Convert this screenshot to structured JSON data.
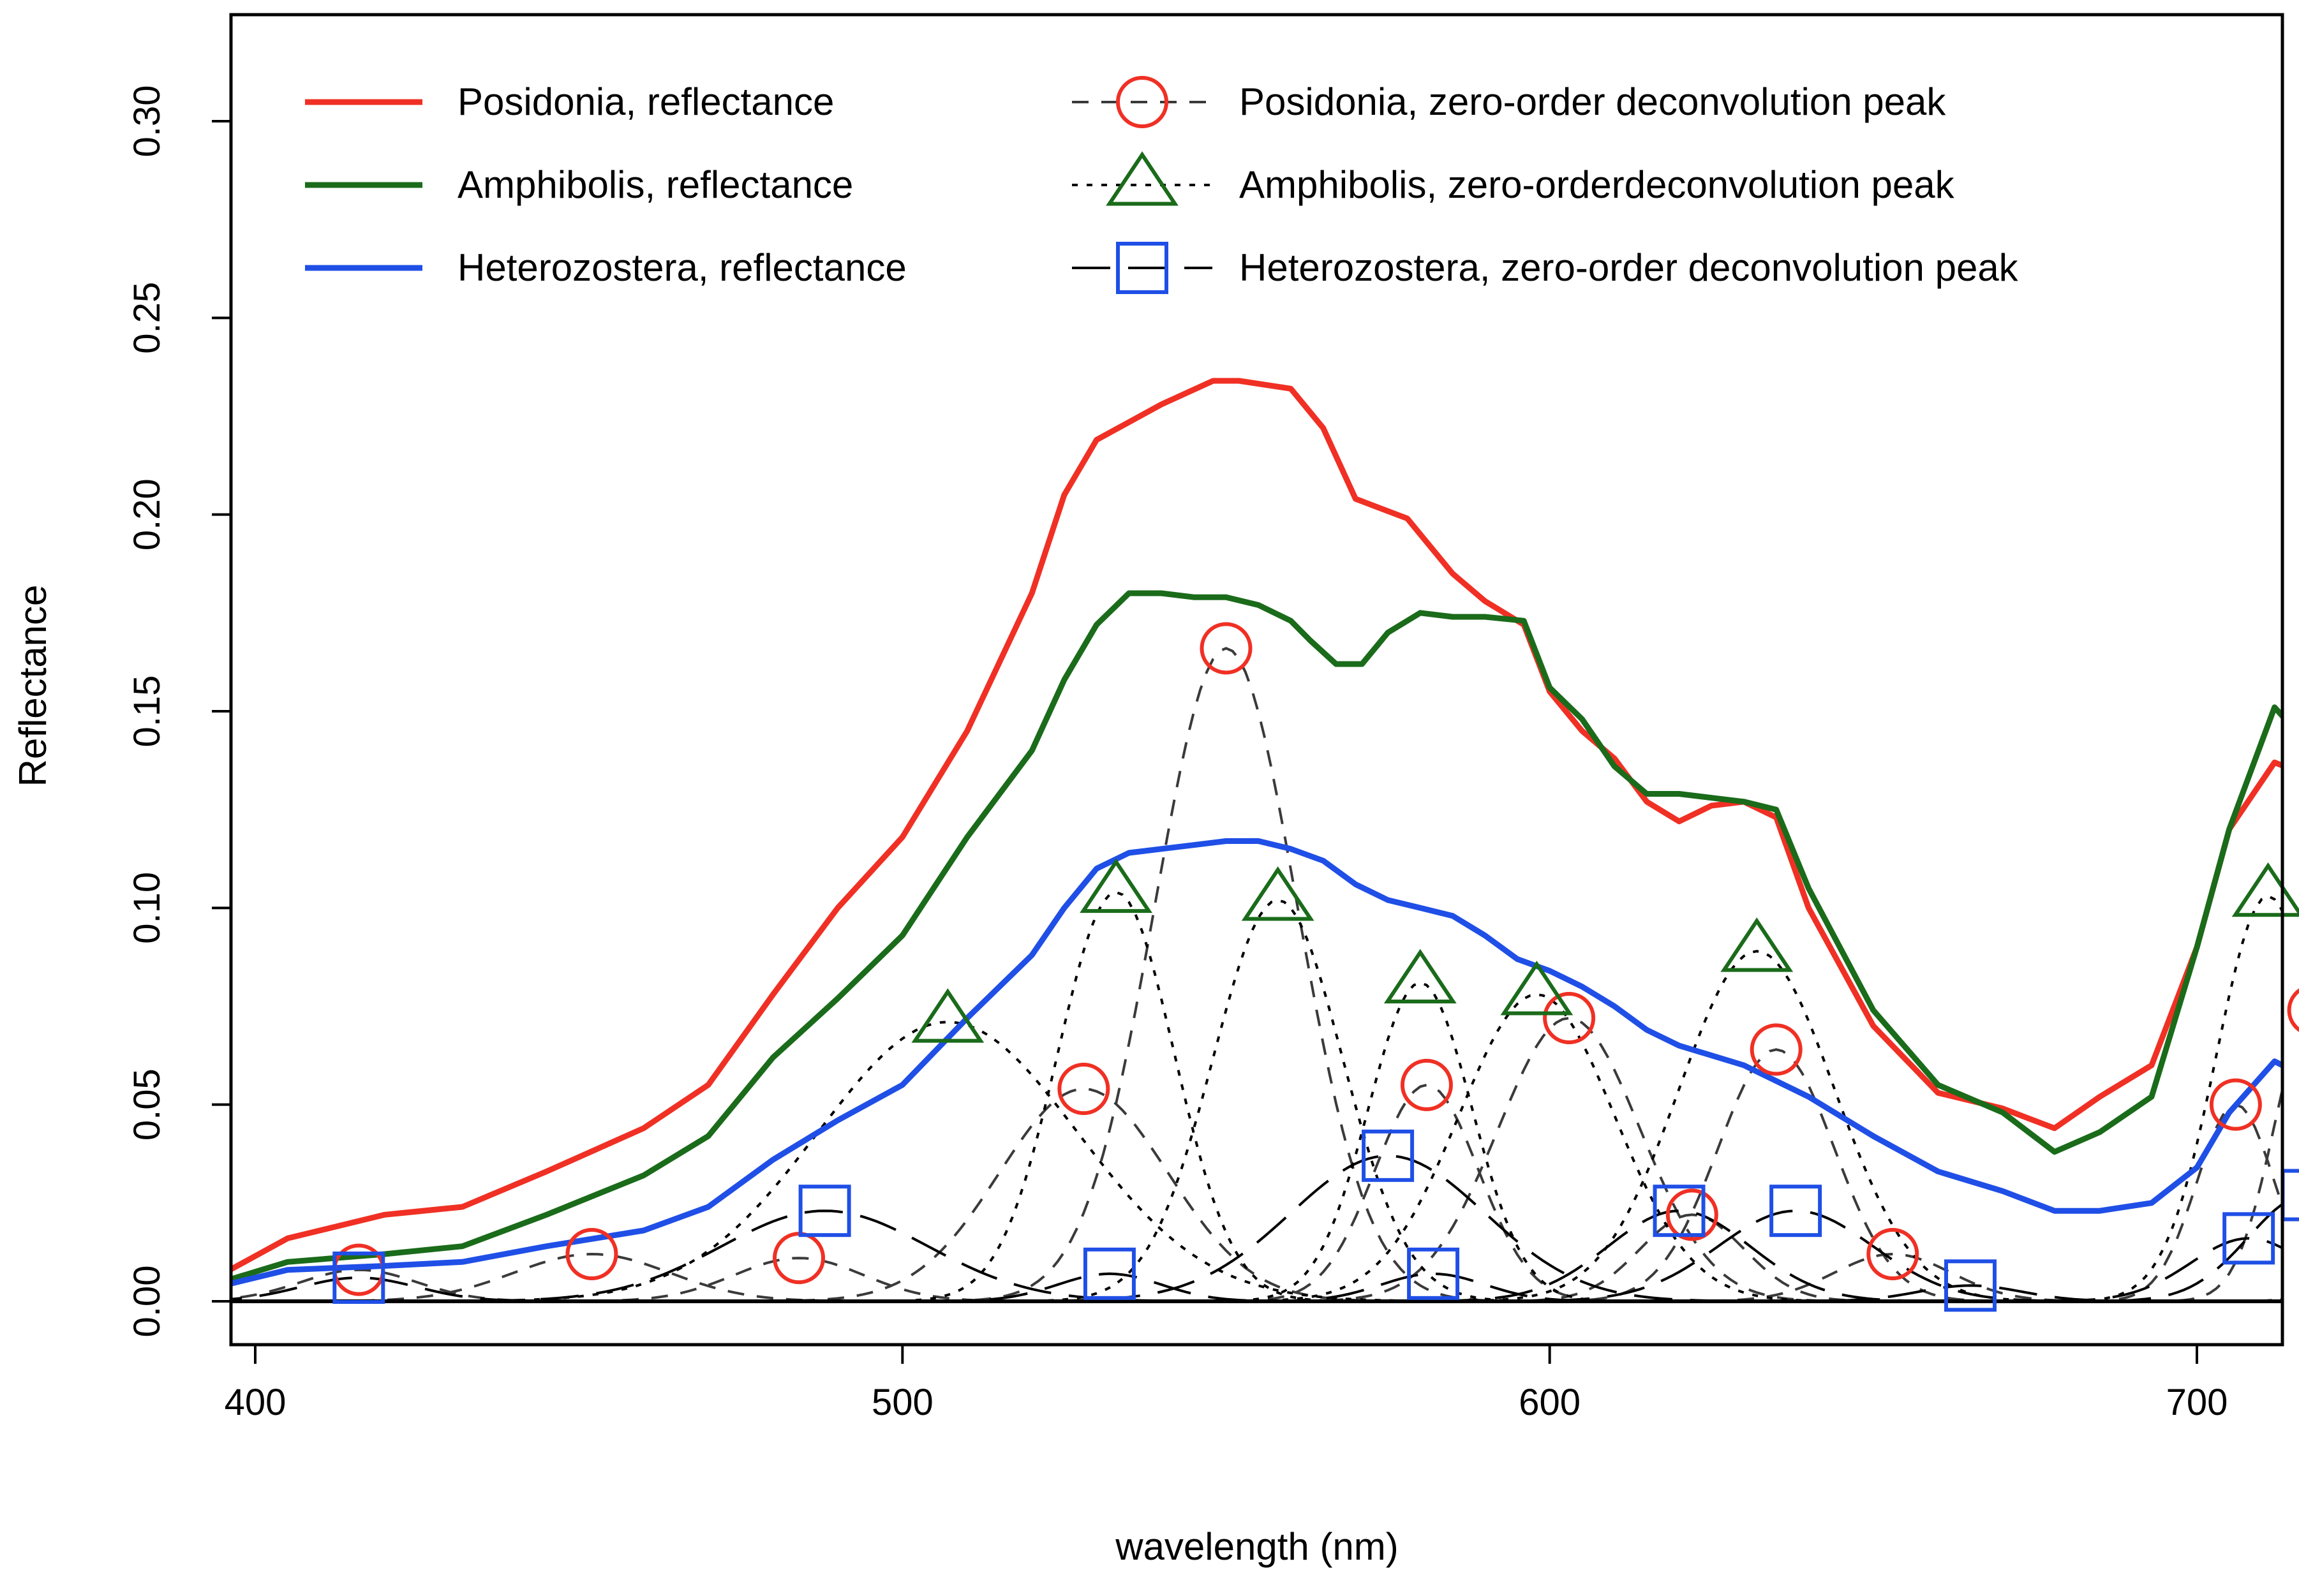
{
  "chart_data": {
    "type": "line",
    "title": "",
    "xlabel": "wavelength (nm)",
    "ylabel": "Reflectance",
    "xlim": [
      365,
      745
    ],
    "ylim": [
      0,
      0.3
    ],
    "x_ticks": [
      400,
      500,
      600,
      700
    ],
    "x_tick_labels": [
      "400",
      "500",
      "600",
      "700"
    ],
    "y_ticks": [
      0,
      0.05,
      0.1,
      0.15,
      0.2,
      0.25,
      0.3
    ],
    "y_tick_labels": [
      "0.00",
      "0.05",
      "0.10",
      "0.15",
      "0.20",
      "0.25",
      "0.30"
    ],
    "grid": false,
    "legend_position": "top",
    "series": [
      {
        "name": "Posidonia, reflectance",
        "color": "#f03024",
        "style": "solid",
        "x": [
          366,
          380,
          395,
          405,
          420,
          432,
          445,
          460,
          470,
          480,
          490,
          500,
          510,
          520,
          525,
          530,
          540,
          548,
          552,
          560,
          565,
          570,
          578,
          585,
          590,
          596,
          600,
          605,
          610,
          615,
          620,
          625,
          630,
          635,
          640,
          650,
          660,
          670,
          678,
          685,
          693,
          700,
          705,
          712,
          718,
          725,
          733
        ],
        "values": [
          0.005,
          0.006,
          0.007,
          0.016,
          0.022,
          0.024,
          0.033,
          0.044,
          0.055,
          0.078,
          0.1,
          0.118,
          0.145,
          0.18,
          0.205,
          0.219,
          0.228,
          0.234,
          0.234,
          0.232,
          0.222,
          0.204,
          0.199,
          0.185,
          0.178,
          0.172,
          0.155,
          0.145,
          0.138,
          0.127,
          0.122,
          0.126,
          0.127,
          0.123,
          0.1,
          0.07,
          0.053,
          0.049,
          0.044,
          0.052,
          0.06,
          0.09,
          0.12,
          0.137,
          0.133,
          0.12,
          0.107
        ]
      },
      {
        "name": "Amphibolis, reflectance",
        "color": "#1a6b1a",
        "style": "solid",
        "x": [
          366,
          380,
          395,
          405,
          420,
          432,
          445,
          460,
          470,
          480,
          490,
          500,
          510,
          520,
          525,
          530,
          535,
          540,
          545,
          550,
          555,
          560,
          563,
          567,
          571,
          575,
          580,
          585,
          590,
          596,
          600,
          605,
          610,
          615,
          620,
          625,
          630,
          635,
          640,
          650,
          660,
          670,
          678,
          685,
          693,
          700,
          705,
          712,
          718,
          725,
          733
        ],
        "values": [
          0.004,
          0.004,
          0.005,
          0.01,
          0.012,
          0.014,
          0.022,
          0.032,
          0.042,
          0.062,
          0.077,
          0.093,
          0.118,
          0.14,
          0.158,
          0.172,
          0.18,
          0.18,
          0.179,
          0.179,
          0.177,
          0.173,
          0.168,
          0.162,
          0.162,
          0.17,
          0.175,
          0.174,
          0.174,
          0.173,
          0.156,
          0.148,
          0.136,
          0.129,
          0.129,
          0.128,
          0.127,
          0.125,
          0.105,
          0.074,
          0.055,
          0.048,
          0.038,
          0.043,
          0.052,
          0.09,
          0.12,
          0.151,
          0.14,
          0.115,
          0.11
        ]
      },
      {
        "name": "Heterozostera, reflectance",
        "color": "#1f4fe6",
        "style": "solid",
        "x": [
          366,
          380,
          395,
          405,
          420,
          432,
          445,
          460,
          470,
          480,
          490,
          500,
          510,
          520,
          525,
          530,
          535,
          540,
          545,
          550,
          555,
          560,
          565,
          570,
          575,
          580,
          585,
          590,
          595,
          600,
          605,
          610,
          615,
          620,
          630,
          640,
          650,
          660,
          670,
          678,
          685,
          693,
          700,
          705,
          712,
          718,
          725,
          733
        ],
        "values": [
          0.003,
          0.003,
          0.004,
          0.008,
          0.009,
          0.01,
          0.014,
          0.018,
          0.024,
          0.036,
          0.046,
          0.055,
          0.072,
          0.088,
          0.1,
          0.11,
          0.114,
          0.115,
          0.116,
          0.117,
          0.117,
          0.115,
          0.112,
          0.106,
          0.102,
          0.1,
          0.098,
          0.093,
          0.087,
          0.084,
          0.08,
          0.075,
          0.069,
          0.065,
          0.06,
          0.052,
          0.042,
          0.033,
          0.028,
          0.023,
          0.023,
          0.025,
          0.034,
          0.048,
          0.061,
          0.056,
          0.045,
          0.04
        ]
      },
      {
        "name": "Posidonia, zero-order deconvolution peak",
        "color": "#f03024",
        "line_color": "#3a3a3a",
        "style": "dashed",
        "marker": "circle",
        "peaks": [
          {
            "center": 416,
            "height": 0.008,
            "sigma": 9
          },
          {
            "center": 452,
            "height": 0.012,
            "sigma": 12
          },
          {
            "center": 484,
            "height": 0.011,
            "sigma": 10
          },
          {
            "center": 528,
            "height": 0.054,
            "sigma": 13
          },
          {
            "center": 550,
            "height": 0.166,
            "sigma": 11
          },
          {
            "center": 581,
            "height": 0.055,
            "sigma": 8
          },
          {
            "center": 603,
            "height": 0.072,
            "sigma": 11
          },
          {
            "center": 622,
            "height": 0.022,
            "sigma": 8
          },
          {
            "center": 635,
            "height": 0.064,
            "sigma": 9
          },
          {
            "center": 653,
            "height": 0.012,
            "sigma": 9
          },
          {
            "center": 706,
            "height": 0.05,
            "sigma": 6
          },
          {
            "center": 718,
            "height": 0.074,
            "sigma": 6
          },
          {
            "center": 734,
            "height": 0.035,
            "sigma": 6
          }
        ]
      },
      {
        "name": "Amphibolis, zero-orderdeconvolution peak",
        "color": "#1a6b1a",
        "line_color": "#000000",
        "style": "dotted",
        "marker": "triangle",
        "peaks": [
          {
            "center": 507,
            "height": 0.071,
            "sigma": 20
          },
          {
            "center": 533,
            "height": 0.104,
            "sigma": 9
          },
          {
            "center": 558,
            "height": 0.102,
            "sigma": 10
          },
          {
            "center": 580,
            "height": 0.081,
            "sigma": 8
          },
          {
            "center": 598,
            "height": 0.078,
            "sigma": 12
          },
          {
            "center": 632,
            "height": 0.089,
            "sigma": 12
          },
          {
            "center": 711,
            "height": 0.103,
            "sigma": 8
          },
          {
            "center": 735,
            "height": 0.068,
            "sigma": 7
          }
        ]
      },
      {
        "name": "Heterozostera, zero-order deconvolution peak",
        "color": "#1f4fe6",
        "line_color": "#000000",
        "style": "longdash",
        "marker": "square",
        "peaks": [
          {
            "center": 416,
            "height": 0.006,
            "sigma": 9
          },
          {
            "center": 488,
            "height": 0.023,
            "sigma": 16
          },
          {
            "center": 532,
            "height": 0.007,
            "sigma": 8
          },
          {
            "center": 575,
            "height": 0.037,
            "sigma": 15
          },
          {
            "center": 582,
            "height": 0.007,
            "sigma": 8
          },
          {
            "center": 620,
            "height": 0.023,
            "sigma": 11
          },
          {
            "center": 638,
            "height": 0.023,
            "sigma": 12
          },
          {
            "center": 665,
            "height": 0.004,
            "sigma": 8
          },
          {
            "center": 708,
            "height": 0.016,
            "sigma": 9
          },
          {
            "center": 717,
            "height": 0.027,
            "sigma": 9
          }
        ]
      }
    ]
  }
}
